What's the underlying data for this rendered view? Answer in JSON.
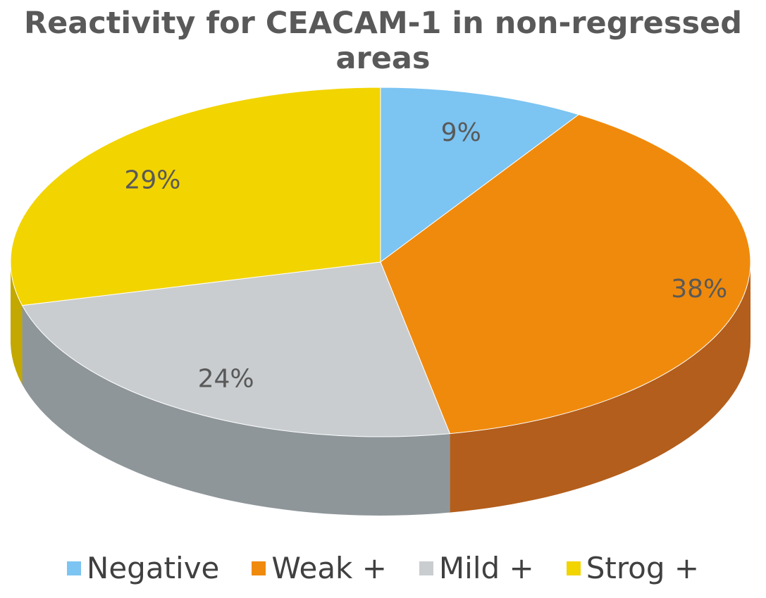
{
  "chart_data": {
    "type": "pie",
    "style": "3d",
    "title": "Reactivity for CEACAM-1 in non-regressed areas",
    "categories": [
      "Negative",
      "Weak +",
      "Mild +",
      "Strog +"
    ],
    "values": [
      9,
      38,
      24,
      29
    ],
    "labels": [
      "9%",
      "38%",
      "24%",
      "29%"
    ],
    "colors": [
      "#7cc4f2",
      "#f08a0c",
      "#c9cdcf",
      "#f2d400"
    ],
    "side_colors": [
      "#4f93c4",
      "#b35e1c",
      "#8e969a",
      "#c2a800"
    ],
    "label_color": "#595959",
    "legend_position": "bottom"
  }
}
